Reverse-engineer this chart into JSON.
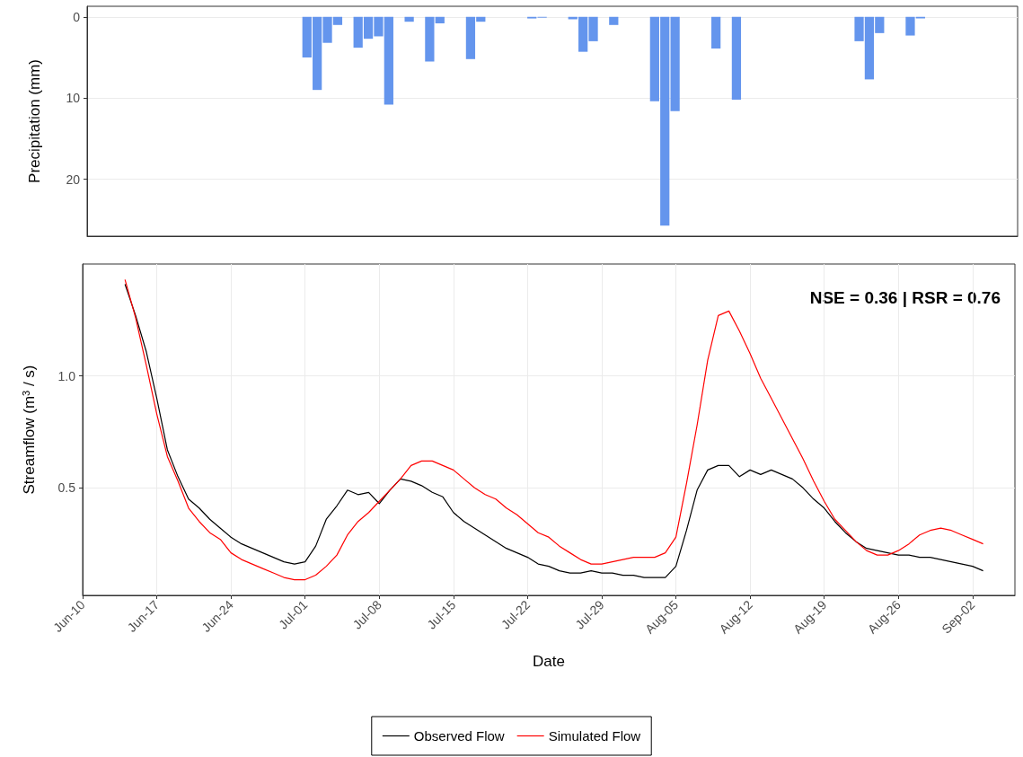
{
  "chart_data": [
    {
      "type": "bar",
      "ylabel": "Precipitation (mm)",
      "categories": [
        null,
        null,
        null,
        null,
        null,
        null,
        null,
        null,
        null,
        null,
        null,
        null,
        null,
        null,
        null,
        null,
        null,
        null,
        null,
        null,
        null,
        null,
        null,
        null,
        null,
        null,
        null,
        null,
        null,
        null,
        null,
        null,
        null,
        null,
        null,
        null,
        null,
        null,
        null,
        null,
        null,
        null,
        null,
        null,
        null,
        null,
        null,
        null,
        null,
        null,
        null,
        null,
        null,
        null,
        null,
        null,
        null,
        null,
        null,
        null,
        null,
        null,
        null,
        null,
        null,
        null,
        null,
        null,
        null,
        null,
        null,
        null,
        null,
        null,
        null,
        null,
        null,
        null,
        null,
        null,
        null,
        null,
        null,
        null,
        null,
        null,
        null,
        null,
        null,
        null,
        null
      ],
      "values": [
        0,
        0,
        0,
        0,
        0,
        0,
        0,
        0,
        0,
        0,
        0,
        0,
        0,
        0,
        0,
        0,
        0,
        0,
        0,
        0,
        0,
        5.0,
        9.0,
        3.2,
        1.0,
        0,
        3.8,
        2.7,
        2.4,
        10.8,
        0,
        0.6,
        0,
        5.5,
        0.8,
        0,
        0,
        5.2,
        0.6,
        0,
        0,
        0,
        0,
        0.2,
        0.1,
        0,
        0,
        0.3,
        4.3,
        3.0,
        0,
        1.0,
        0,
        0,
        0,
        10.4,
        25.7,
        11.6,
        0,
        0,
        0,
        3.9,
        0,
        10.2,
        0,
        0,
        0,
        0,
        0,
        0,
        0,
        0,
        0,
        0,
        0,
        3.0,
        7.7,
        2.0,
        0,
        0,
        2.3,
        0.2,
        0,
        0,
        0,
        0,
        0,
        0,
        0,
        0,
        0
      ],
      "color": "#6495ed",
      "ylim": [
        27,
        -1.3
      ],
      "yticks": [
        0,
        10,
        20
      ],
      "grid": "y",
      "tick_labels": "y"
    },
    {
      "type": "line",
      "xlabel": "Date",
      "ylabel": "Streamflow (m$^{3}$ / s)",
      "annotations": [
        "NSE = 0.36 | RSR = 0.76"
      ],
      "x": [
        "--06-14",
        "--06-15",
        "--06-16",
        "--06-17",
        "--06-18",
        "--06-19",
        "--06-20",
        "--06-21",
        "--06-22",
        "--06-23",
        "--06-24",
        "--06-25",
        "--06-26",
        "--06-27",
        "--06-28",
        "--06-29",
        "--06-30",
        "--07-01",
        "--07-02",
        "--07-03",
        "--07-04",
        "--07-05",
        "--07-06",
        "--07-07",
        "--07-08",
        "--07-09",
        "--07-10",
        "--07-11",
        "--07-12",
        "--07-13",
        "--07-14",
        "--07-15",
        "--07-16",
        "--07-17",
        "--07-18",
        "--07-19",
        "--07-20",
        "--07-21",
        "--07-22",
        "--07-23",
        "--07-24",
        "--07-25",
        "--07-26",
        "--07-27",
        "--07-28",
        "--07-29",
        "--07-30",
        "--07-31",
        "--08-01",
        "--08-02",
        "--08-03",
        "--08-04",
        "--08-05",
        "--08-06",
        "--08-07",
        "--08-08",
        "--08-09",
        "--08-10",
        "--08-11",
        "--08-12",
        "--08-13",
        "--08-14",
        "--08-15",
        "--08-16",
        "--08-17",
        "--08-18",
        "--08-19",
        "--08-20",
        "--08-21",
        "--08-22",
        "--08-23",
        "--08-24",
        "--08-25",
        "--08-26",
        "--08-27",
        "--08-28",
        "--08-29",
        "--08-30",
        "--08-31",
        "--09-01",
        "--09-02",
        "--09-03"
      ],
      "series": [
        {
          "name": "Observed Flow",
          "color": "#000000",
          "values": [
            1.41,
            1.27,
            1.11,
            0.9,
            0.67,
            0.55,
            0.45,
            0.41,
            0.36,
            0.32,
            0.28,
            0.25,
            0.23,
            0.21,
            0.19,
            0.17,
            0.16,
            0.17,
            0.24,
            0.36,
            0.42,
            0.49,
            0.47,
            0.48,
            0.43,
            0.49,
            0.54,
            0.53,
            0.51,
            0.48,
            0.46,
            0.39,
            0.35,
            0.32,
            0.29,
            0.26,
            0.23,
            0.21,
            0.19,
            0.16,
            0.15,
            0.13,
            0.12,
            0.12,
            0.13,
            0.12,
            0.12,
            0.11,
            0.11,
            0.1,
            0.1,
            0.1,
            0.15,
            0.31,
            0.49,
            0.58,
            0.6,
            0.6,
            0.55,
            0.58,
            0.56,
            0.58,
            0.56,
            0.54,
            0.5,
            0.45,
            0.41,
            0.35,
            0.3,
            0.26,
            0.23,
            0.22,
            0.21,
            0.2,
            0.2,
            0.19,
            0.19,
            0.18,
            0.17,
            0.16,
            0.15,
            0.13
          ]
        },
        {
          "name": "Simulated Flow",
          "color": "#ff0000",
          "values": [
            1.43,
            1.26,
            1.05,
            0.83,
            0.64,
            0.53,
            0.41,
            0.35,
            0.3,
            0.27,
            0.21,
            0.18,
            0.16,
            0.14,
            0.12,
            0.1,
            0.09,
            0.09,
            0.11,
            0.15,
            0.2,
            0.29,
            0.35,
            0.39,
            0.44,
            0.49,
            0.54,
            0.6,
            0.62,
            0.62,
            0.6,
            0.58,
            0.54,
            0.5,
            0.47,
            0.45,
            0.41,
            0.38,
            0.34,
            0.3,
            0.28,
            0.24,
            0.21,
            0.18,
            0.16,
            0.16,
            0.17,
            0.18,
            0.19,
            0.19,
            0.19,
            0.21,
            0.28,
            0.52,
            0.78,
            1.07,
            1.27,
            1.29,
            1.2,
            1.1,
            0.99,
            0.9,
            0.81,
            0.72,
            0.63,
            0.53,
            0.44,
            0.36,
            0.31,
            0.26,
            0.22,
            0.2,
            0.2,
            0.22,
            0.25,
            0.29,
            0.31,
            0.32,
            0.31,
            0.29,
            0.27,
            0.25
          ]
        }
      ],
      "xlim": [
        "--06-10",
        "--09-06"
      ],
      "xticks": [
        {
          "value": "--06-10",
          "label": "Jun-10"
        },
        {
          "value": "--06-17",
          "label": "Jun-17"
        },
        {
          "value": "--06-24",
          "label": "Jun-24"
        },
        {
          "value": "--07-01",
          "label": "Jul-01"
        },
        {
          "value": "--07-08",
          "label": "Jul-08"
        },
        {
          "value": "--07-15",
          "label": "Jul-15"
        },
        {
          "value": "--07-22",
          "label": "Jul-22"
        },
        {
          "value": "--07-29",
          "label": "Jul-29"
        },
        {
          "value": "--08-05",
          "label": "Aug-05"
        },
        {
          "value": "--08-12",
          "label": "Aug-12"
        },
        {
          "value": "--08-19",
          "label": "Aug-19"
        },
        {
          "value": "--08-26",
          "label": "Aug-26"
        },
        {
          "value": "--09-02",
          "label": "Sep-02"
        }
      ],
      "ylim": [
        0.02,
        1.5
      ],
      "yticks": [
        0.5,
        {
          "value": 1.0,
          "label": "1.0"
        }
      ],
      "grid": true,
      "legend": "bottom"
    }
  ]
}
